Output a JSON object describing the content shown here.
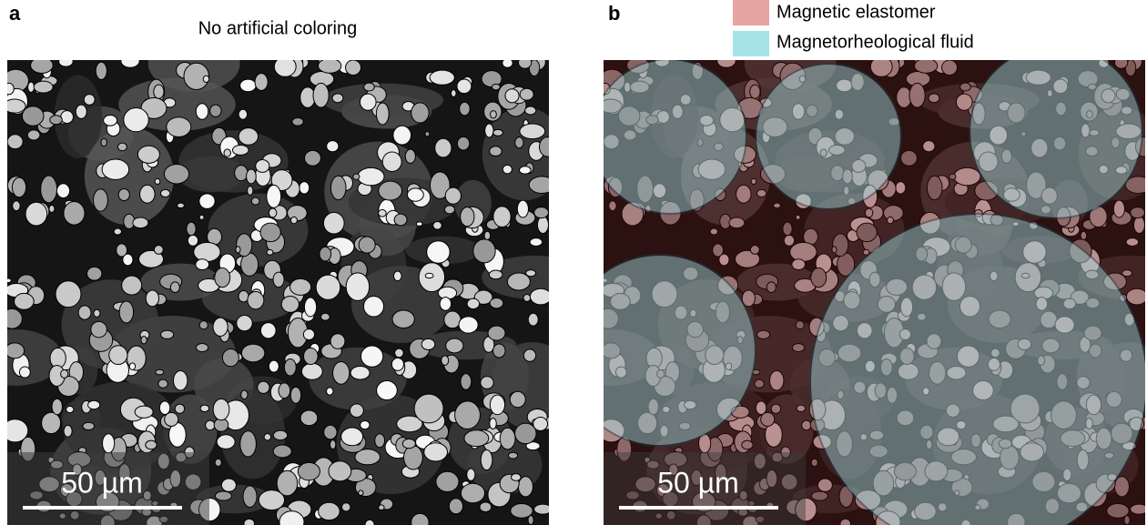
{
  "panels": [
    {
      "label": "a",
      "title": "No artificial coloring",
      "scale_bar": "50 µm"
    },
    {
      "label": "b",
      "scale_bar": "50 µm",
      "legend": [
        {
          "name": "Magnetic elastomer",
          "color": "#e8a3a3"
        },
        {
          "name": "Magnetorheological fluid",
          "color": "#a6e3e6"
        }
      ]
    }
  ]
}
